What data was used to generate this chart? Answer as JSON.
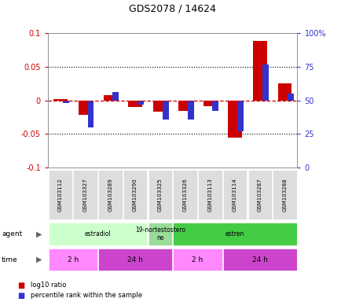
{
  "title": "GDS2078 / 14624",
  "samples": [
    "GSM103112",
    "GSM103327",
    "GSM103289",
    "GSM103290",
    "GSM103325",
    "GSM103326",
    "GSM103113",
    "GSM103114",
    "GSM103287",
    "GSM103288"
  ],
  "log10_ratio": [
    0.002,
    -0.022,
    0.008,
    -0.01,
    -0.017,
    -0.016,
    -0.008,
    -0.055,
    0.088,
    0.025
  ],
  "percentile_rank": [
    48,
    30,
    56,
    47,
    36,
    36,
    42,
    27,
    77,
    55
  ],
  "ylim_left": [
    -0.1,
    0.1
  ],
  "ylim_right": [
    0,
    100
  ],
  "yticks_left": [
    -0.1,
    -0.05,
    0.0,
    0.05,
    0.1
  ],
  "yticks_right": [
    0,
    25,
    50,
    75,
    100
  ],
  "ytick_labels_left": [
    "-0.1",
    "-0.05",
    "0",
    "0.05",
    "0.1"
  ],
  "ytick_labels_right": [
    "0",
    "25",
    "50",
    "75",
    "100%"
  ],
  "hlines": [
    0.05,
    -0.05
  ],
  "bar_color_red": "#cc0000",
  "bar_color_blue": "#3333cc",
  "dashed_line_color": "#cc0000",
  "agent_labels": [
    {
      "text": "estradiol",
      "start": 0,
      "end": 4,
      "color": "#ccffcc"
    },
    {
      "text": "19-nortestostero\nne",
      "start": 4,
      "end": 5,
      "color": "#99dd99"
    },
    {
      "text": "estren",
      "start": 5,
      "end": 10,
      "color": "#44cc44"
    }
  ],
  "time_labels": [
    {
      "text": "2 h",
      "start": 0,
      "end": 2,
      "color": "#ff88ff"
    },
    {
      "text": "24 h",
      "start": 2,
      "end": 5,
      "color": "#cc44cc"
    },
    {
      "text": "2 h",
      "start": 5,
      "end": 7,
      "color": "#ff88ff"
    },
    {
      "text": "24 h",
      "start": 7,
      "end": 10,
      "color": "#cc44cc"
    }
  ],
  "agent_row_label": "agent",
  "time_row_label": "time",
  "legend_red": "log10 ratio",
  "legend_blue": "percentile rank within the sample",
  "red_bar_width": 0.55,
  "blue_bar_width": 0.25,
  "xlabel_color_left": "#cc0000",
  "xlabel_color_right": "#3333cc",
  "bg_color": "#ffffff"
}
